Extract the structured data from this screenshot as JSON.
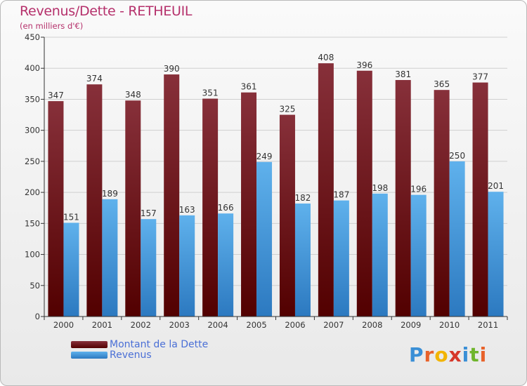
{
  "header": {
    "title": "Revenus/Dette - RETHEUIL",
    "subtitle": "(en milliers d'€)"
  },
  "legend": {
    "items": [
      {
        "label": "Montant de la Dette"
      },
      {
        "label": "Revenus"
      }
    ]
  },
  "logo": {
    "text": "Proxiti"
  },
  "colors": {
    "debt_top": "#87303a",
    "debt_bottom": "#520000",
    "revenue_top": "#5fb1ec",
    "revenue_bottom": "#2c79c0"
  },
  "chart_data": {
    "type": "bar",
    "categories": [
      "2000",
      "2001",
      "2002",
      "2003",
      "2004",
      "2005",
      "2006",
      "2007",
      "2008",
      "2009",
      "2010",
      "2011"
    ],
    "series": [
      {
        "name": "Montant de la Dette",
        "values": [
          347,
          374,
          348,
          390,
          351,
          361,
          325,
          408,
          396,
          381,
          365,
          377
        ]
      },
      {
        "name": "Revenus",
        "values": [
          151,
          189,
          157,
          163,
          166,
          249,
          182,
          187,
          198,
          196,
          250,
          201
        ]
      }
    ],
    "title": "Revenus/Dette - RETHEUIL",
    "ylabel": "(en milliers d'€)",
    "ylim": [
      0,
      450
    ],
    "yticks": [
      0,
      50,
      100,
      150,
      200,
      250,
      300,
      350,
      400,
      450
    ],
    "grid": true,
    "legend_position": "bottom-left",
    "data_labels": true
  }
}
